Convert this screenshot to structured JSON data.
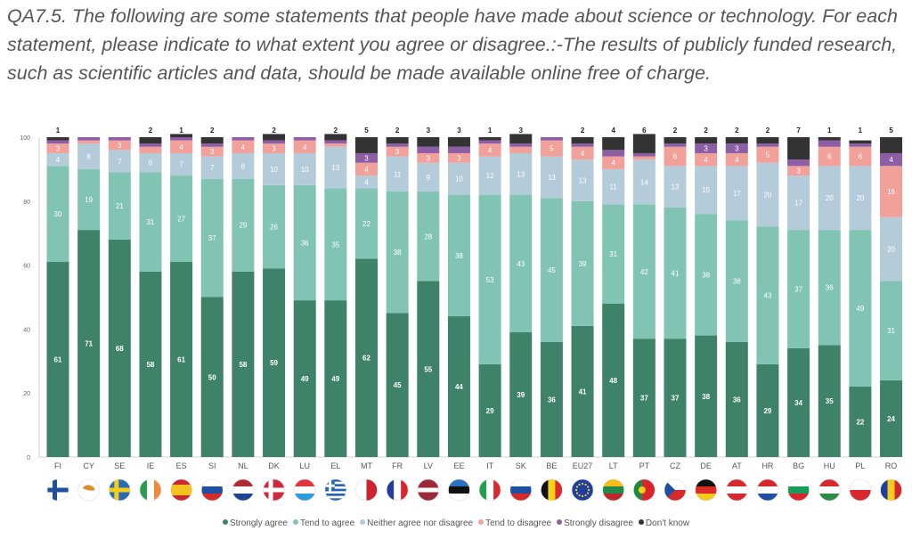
{
  "question": "QA7.5. The following are some statements that people have made about science or technology. For each statement, please indicate to what extent you agree or disagree.:-The results of publicly funded research, such as scientific articles and data, should be made available online free of charge.",
  "chart_data": {
    "type": "bar",
    "stacked": true,
    "ylim": [
      0,
      100
    ],
    "yticks": [
      0,
      20,
      40,
      60,
      80,
      100
    ],
    "categories": [
      "FI",
      "CY",
      "SE",
      "IE",
      "ES",
      "SI",
      "NL",
      "DK",
      "LU",
      "EL",
      "MT",
      "FR",
      "LV",
      "EE",
      "IT",
      "SK",
      "BE",
      "EU27",
      "LT",
      "PT",
      "CZ",
      "DE",
      "AT",
      "HR",
      "BG",
      "HU",
      "PL",
      "RO"
    ],
    "series": [
      {
        "name": "Strongly agree",
        "color": "#3e826a",
        "values": [
          61,
          71,
          68,
          58,
          61,
          50,
          58,
          59,
          49,
          49,
          62,
          45,
          55,
          44,
          29,
          39,
          36,
          41,
          48,
          37,
          37,
          38,
          36,
          29,
          34,
          35,
          22,
          24
        ]
      },
      {
        "name": "Tend to agree",
        "color": "#82c4b4",
        "values": [
          30,
          19,
          21,
          31,
          27,
          37,
          29,
          26,
          36,
          35,
          22,
          38,
          28,
          38,
          53,
          43,
          45,
          39,
          31,
          42,
          41,
          38,
          38,
          43,
          37,
          36,
          49,
          31
        ]
      },
      {
        "name": "Neither agree nor disagree",
        "color": "#b4cbd9",
        "values": [
          4,
          8,
          7,
          6,
          7,
          7,
          8,
          10,
          10,
          13,
          4,
          11,
          9,
          10,
          12,
          13,
          13,
          13,
          11,
          14,
          13,
          15,
          17,
          20,
          17,
          20,
          20,
          20
        ]
      },
      {
        "name": "Tend to disagree",
        "color": "#f2a09a",
        "values": [
          3,
          1,
          3,
          2,
          4,
          3,
          4,
          3,
          4,
          1,
          4,
          3,
          3,
          3,
          4,
          2,
          5,
          4,
          4,
          1,
          6,
          4,
          4,
          5,
          3,
          6,
          6,
          16
        ]
      },
      {
        "name": "Strongly disagree",
        "color": "#8d5ea6",
        "values": [
          1,
          1,
          1,
          1,
          1,
          1,
          1,
          1,
          1,
          1,
          3,
          1,
          2,
          2,
          1,
          1,
          1,
          1,
          2,
          1,
          1,
          3,
          3,
          1,
          2,
          2,
          1,
          4
        ]
      },
      {
        "name": "Don't know",
        "color": "#333333",
        "values": [
          1,
          0,
          0,
          2,
          1,
          2,
          0,
          2,
          0,
          2,
          5,
          2,
          3,
          3,
          1,
          3,
          0,
          2,
          4,
          6,
          2,
          2,
          2,
          2,
          7,
          1,
          1,
          5
        ]
      }
    ],
    "legend_position": "bottom-center",
    "grid": false
  },
  "flags": {
    "FI": {
      "type": "nordic",
      "bg": "#ffffff",
      "cross": "#1e4fa0"
    },
    "CY": {
      "type": "emblem",
      "bg": "#ffffff",
      "color": "#d98e2e"
    },
    "SE": {
      "type": "nordic",
      "bg": "#2a6ab6",
      "cross": "#f6cc1d"
    },
    "IE": {
      "type": "v3",
      "colors": [
        "#269e52",
        "#ffffff",
        "#f2893a"
      ]
    },
    "ES": {
      "type": "h",
      "colors": [
        "#c8282c",
        "#f4c320",
        "#f4c320",
        "#c8282c"
      ],
      "weights": [
        1,
        1,
        1,
        1
      ]
    },
    "SI": {
      "type": "h3",
      "colors": [
        "#ffffff",
        "#1f4fa2",
        "#d42a2a"
      ]
    },
    "NL": {
      "type": "h3",
      "colors": [
        "#b22a33",
        "#ffffff",
        "#22458f"
      ]
    },
    "DK": {
      "type": "nordic",
      "bg": "#cf2a3b",
      "cross": "#ffffff"
    },
    "LU": {
      "type": "h3",
      "colors": [
        "#e3333f",
        "#ffffff",
        "#2a9dd8"
      ]
    },
    "EL": {
      "type": "greece",
      "blue": "#2563b7"
    },
    "MT": {
      "type": "v2",
      "colors": [
        "#ffffff",
        "#d0222e"
      ]
    },
    "FR": {
      "type": "v3",
      "colors": [
        "#223e96",
        "#ffffff",
        "#d8262e"
      ]
    },
    "LV": {
      "type": "lv",
      "colors": [
        "#9c2a3a",
        "#ffffff"
      ]
    },
    "EE": {
      "type": "h3",
      "colors": [
        "#2a73c2",
        "#111111",
        "#ffffff"
      ]
    },
    "IT": {
      "type": "v3",
      "colors": [
        "#219e4e",
        "#ffffff",
        "#d62a31"
      ]
    },
    "SK": {
      "type": "h3",
      "colors": [
        "#ffffff",
        "#1f4fa2",
        "#d42a2a"
      ]
    },
    "BE": {
      "type": "v3",
      "colors": [
        "#111111",
        "#f5d216",
        "#dd2a30"
      ]
    },
    "EU27": {
      "type": "eu",
      "bg": "#1f3fa0",
      "star": "#f5d216"
    },
    "LT": {
      "type": "h3",
      "colors": [
        "#f5bd16",
        "#1f8a4c",
        "#c0272d"
      ]
    },
    "PT": {
      "type": "v2w",
      "colors": [
        "#1b8a3e",
        "#d8242a"
      ]
    },
    "CZ": {
      "type": "cz",
      "colors": [
        "#ffffff",
        "#d42a2a",
        "#1f4fa2"
      ]
    },
    "DE": {
      "type": "h3",
      "colors": [
        "#111111",
        "#dd2a24",
        "#f5c91a"
      ]
    },
    "AT": {
      "type": "h3",
      "colors": [
        "#d8282e",
        "#ffffff",
        "#d8282e"
      ]
    },
    "HR": {
      "type": "h3",
      "colors": [
        "#d8282e",
        "#ffffff",
        "#1f4fa2"
      ]
    },
    "BG": {
      "type": "h3",
      "colors": [
        "#ffffff",
        "#1a9b5a",
        "#d8282e"
      ]
    },
    "HU": {
      "type": "h3",
      "colors": [
        "#d8282e",
        "#ffffff",
        "#2c8a45"
      ]
    },
    "PL": {
      "type": "h2",
      "colors": [
        "#ffffff",
        "#d8282e"
      ]
    },
    "RO": {
      "type": "v3",
      "colors": [
        "#1f3fa0",
        "#f5cc1a",
        "#d4262e"
      ]
    }
  }
}
